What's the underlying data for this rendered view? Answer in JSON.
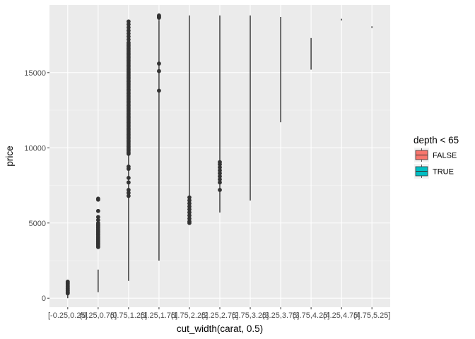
{
  "chart_data": {
    "type": "boxplot",
    "xlabel": "cut_width(carat, 0.5)",
    "ylabel": "price",
    "categories": [
      "[-0.25,0.25]",
      "(0.25,0.75]",
      "(0.75,1.25]",
      "(1.25,1.75]",
      "(1.75,2.25]",
      "(2.25,2.75]",
      "(2.75,3.25]",
      "(3.25,3.75]",
      "(3.75,4.25]",
      "(4.25,4.75]",
      "(4.75,5.25]"
    ],
    "ylim": [
      -600,
      19500
    ],
    "yticks": [
      0,
      5000,
      10000,
      15000
    ],
    "ytick_labels": [
      "0",
      "5000",
      "10000",
      "15000"
    ],
    "grid": true,
    "legend": {
      "title": "depth < 65",
      "position": "right",
      "entries": [
        {
          "label": "FALSE",
          "color": "#F8766D"
        },
        {
          "label": "TRUE",
          "color": "#00BFC4"
        }
      ]
    },
    "series": [
      {
        "whiskers": [
          [
            1,
            1100
          ],
          [
            400,
            1900
          ],
          [
            1150,
            18500
          ],
          [
            2500,
            18500
          ],
          [
            5000,
            18800
          ],
          [
            5700,
            18800
          ],
          [
            6500,
            18800
          ],
          [
            11700,
            18700
          ],
          [
            15200,
            17300
          ],
          [
            18500,
            18550
          ],
          [
            18000,
            18050
          ]
        ],
        "outliers": [
          [
            320,
            380,
            420,
            500,
            560,
            640,
            720,
            800,
            880,
            960,
            1040,
            1100
          ],
          [
            3400,
            3480,
            3560,
            3640,
            3720,
            3800,
            3880,
            3960,
            4040,
            4120,
            4200,
            4280,
            4360,
            4440,
            4520,
            4600,
            4680,
            4760,
            4840,
            4920,
            5000,
            5200,
            5400,
            5800,
            6550,
            6620
          ],
          [
            6800,
            7000,
            7200,
            7700,
            8000,
            8600,
            8750,
            9600,
            9700,
            9800,
            9900,
            10000,
            10100,
            10200,
            10300,
            10400,
            10500,
            10600,
            10700,
            10800,
            10900,
            11000,
            11100,
            11200,
            11300,
            11400,
            11500,
            11600,
            11700,
            11800,
            11900,
            12000,
            12100,
            12200,
            12300,
            12400,
            12500,
            12600,
            12700,
            12800,
            12900,
            13000,
            13100,
            13200,
            13300,
            13400,
            13500,
            13600,
            13700,
            13800,
            13900,
            14000,
            14100,
            14200,
            14300,
            14400,
            14500,
            14600,
            14700,
            14800,
            14900,
            15000,
            15100,
            15200,
            15300,
            15400,
            15500,
            15600,
            15700,
            15800,
            15900,
            16000,
            16100,
            16200,
            16300,
            16400,
            16500,
            16600,
            16700,
            16800,
            16900,
            17000,
            17200,
            17400,
            17600,
            17800,
            18000,
            18200,
            18400
          ],
          [
            13800,
            15100,
            15600,
            18650,
            18700,
            18750,
            18800
          ],
          [
            5000,
            5100,
            5300,
            5500,
            5700,
            5900,
            6100,
            6300,
            6500,
            6700
          ],
          [
            7200,
            7700,
            7900,
            8100,
            8300,
            8500,
            8700,
            8900,
            9050
          ],
          [],
          [],
          [],
          [],
          []
        ]
      }
    ]
  }
}
